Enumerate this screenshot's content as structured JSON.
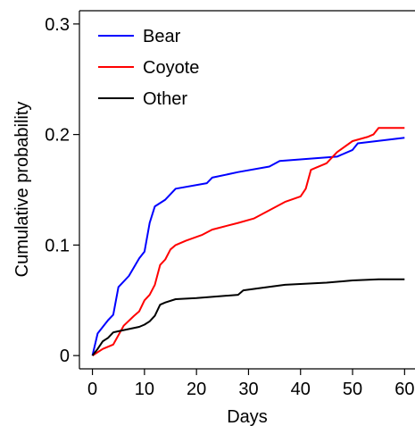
{
  "chart_data": {
    "type": "line",
    "xlabel": "Days",
    "ylabel": "Cumulative probability",
    "xlim": [
      -2.5,
      62
    ],
    "ylim": [
      -0.012,
      0.312
    ],
    "xticks": [
      0,
      10,
      20,
      30,
      40,
      50,
      60
    ],
    "yticks": [
      0,
      0.1,
      0.2,
      0.3
    ],
    "ytick_labels": [
      "0",
      "0.1",
      "0.2",
      "0.3"
    ],
    "grid": false,
    "legend_position": "top-left",
    "series": [
      {
        "name": "Bear",
        "color": "#0000ff",
        "x": [
          0,
          1,
          3,
          4,
          5,
          7,
          9,
          10,
          11,
          12,
          14,
          16,
          22,
          23,
          28,
          34,
          36,
          47,
          50,
          51,
          60
        ],
        "y": [
          0,
          0.02,
          0.032,
          0.037,
          0.062,
          0.072,
          0.088,
          0.094,
          0.12,
          0.135,
          0.141,
          0.151,
          0.156,
          0.161,
          0.166,
          0.171,
          0.176,
          0.18,
          0.186,
          0.192,
          0.197
        ]
      },
      {
        "name": "Coyote",
        "color": "#ff0000",
        "x": [
          0,
          2,
          4,
          6,
          8,
          9,
          10,
          11,
          12,
          13,
          14,
          15,
          16,
          18,
          21,
          23,
          28,
          31,
          37,
          40,
          41,
          42,
          43,
          45,
          47,
          50,
          53,
          54,
          55,
          60
        ],
        "y": [
          0,
          0.006,
          0.01,
          0.027,
          0.036,
          0.04,
          0.05,
          0.055,
          0.064,
          0.082,
          0.087,
          0.096,
          0.1,
          0.104,
          0.109,
          0.114,
          0.12,
          0.124,
          0.139,
          0.144,
          0.151,
          0.168,
          0.17,
          0.174,
          0.184,
          0.194,
          0.198,
          0.2,
          0.206,
          0.206
        ]
      },
      {
        "name": "Other",
        "color": "#000000",
        "x": [
          0,
          1,
          2,
          3,
          4,
          5,
          9,
          10,
          11,
          12,
          13,
          14,
          16,
          20,
          28,
          29,
          32,
          37,
          45,
          50,
          55,
          60
        ],
        "y": [
          0,
          0.006,
          0.013,
          0.016,
          0.021,
          0.022,
          0.026,
          0.028,
          0.031,
          0.036,
          0.046,
          0.048,
          0.051,
          0.052,
          0.055,
          0.059,
          0.061,
          0.064,
          0.066,
          0.068,
          0.069,
          0.069
        ]
      }
    ]
  }
}
